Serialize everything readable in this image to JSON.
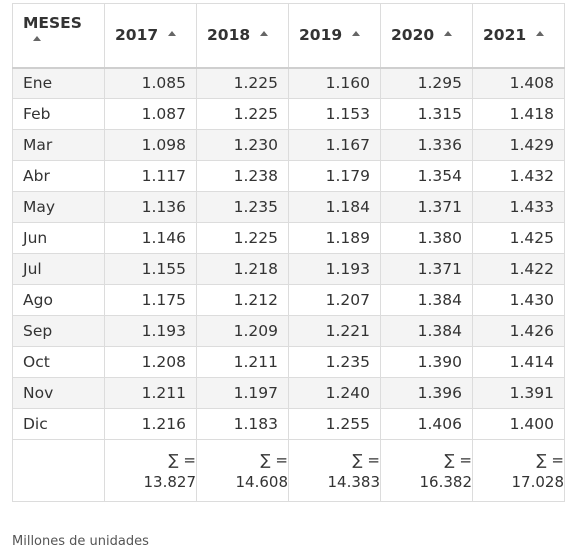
{
  "table": {
    "month_header": "MESES",
    "year_headers": [
      "2017",
      "2018",
      "2019",
      "2020",
      "2021"
    ],
    "rows": [
      {
        "month": "Ene",
        "values": [
          "1.085",
          "1.225",
          "1.160",
          "1.295",
          "1.408"
        ]
      },
      {
        "month": "Feb",
        "values": [
          "1.087",
          "1.225",
          "1.153",
          "1.315",
          "1.418"
        ]
      },
      {
        "month": "Mar",
        "values": [
          "1.098",
          "1.230",
          "1.167",
          "1.336",
          "1.429"
        ]
      },
      {
        "month": "Abr",
        "values": [
          "1.117",
          "1.238",
          "1.179",
          "1.354",
          "1.432"
        ]
      },
      {
        "month": "May",
        "values": [
          "1.136",
          "1.235",
          "1.184",
          "1.371",
          "1.433"
        ]
      },
      {
        "month": "Jun",
        "values": [
          "1.146",
          "1.225",
          "1.189",
          "1.380",
          "1.425"
        ]
      },
      {
        "month": "Jul",
        "values": [
          "1.155",
          "1.218",
          "1.193",
          "1.371",
          "1.422"
        ]
      },
      {
        "month": "Ago",
        "values": [
          "1.175",
          "1.212",
          "1.207",
          "1.384",
          "1.430"
        ]
      },
      {
        "month": "Sep",
        "values": [
          "1.193",
          "1.209",
          "1.221",
          "1.384",
          "1.426"
        ]
      },
      {
        "month": "Oct",
        "values": [
          "1.208",
          "1.211",
          "1.235",
          "1.390",
          "1.414"
        ]
      },
      {
        "month": "Nov",
        "values": [
          "1.211",
          "1.197",
          "1.240",
          "1.396",
          "1.391"
        ]
      },
      {
        "month": "Dic",
        "values": [
          "1.216",
          "1.183",
          "1.255",
          "1.406",
          "1.400"
        ]
      }
    ],
    "sum_label": "∑ =",
    "totals": [
      "13.827",
      "14.608",
      "14.383",
      "16.382",
      "17.028"
    ],
    "sort_icon": "sort-ascending-icon"
  },
  "note": "Millones de unidades",
  "colors": {
    "row_stripe": "#f4f4f4",
    "border": "#dcdcdc",
    "text": "#333333"
  }
}
